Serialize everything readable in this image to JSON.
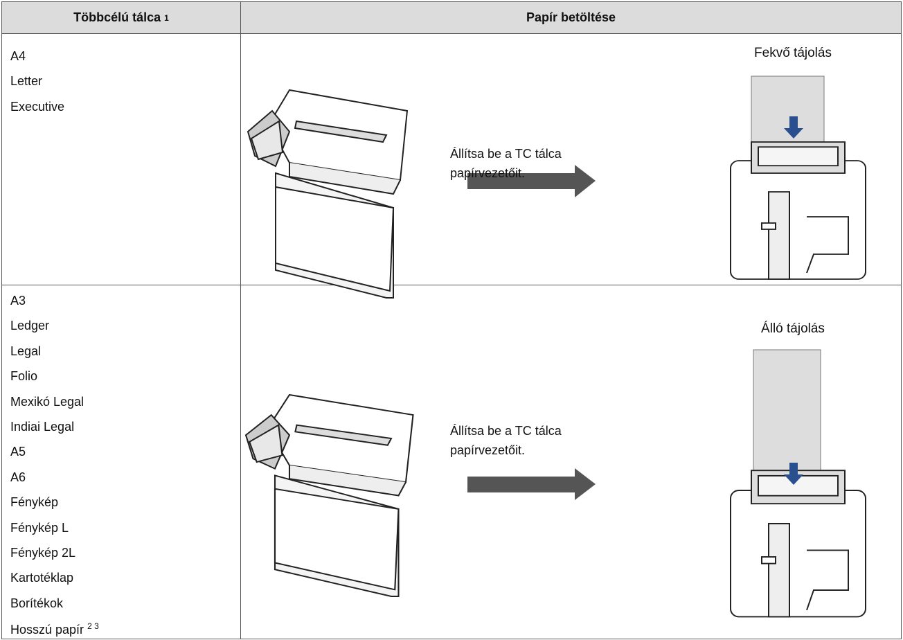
{
  "table": {
    "header": [
      "Többcélú tálca",
      "Papír betöltése"
    ],
    "header_note": "1",
    "rows": [
      {
        "sizes": [
          "A4",
          "Letter",
          "Executive"
        ],
        "instruction": "Állítsa be a TC tálca papírvezetőit.",
        "orientation": "Fekvő tájolás"
      },
      {
        "sizes": [
          "A3",
          "Ledger",
          "Legal",
          "Folio",
          "Mexikó Legal",
          "Indiai Legal",
          "A5",
          "A6",
          "Fénykép",
          "Fénykép L",
          "Fénykép 2L",
          "Kartotéklap",
          "Borítékok",
          "Hosszú papír"
        ],
        "last_size_note": "2 3",
        "instruction": "Állítsa be a TC tálca papírvezetőit.",
        "orientation": "Álló tájolás"
      }
    ]
  }
}
